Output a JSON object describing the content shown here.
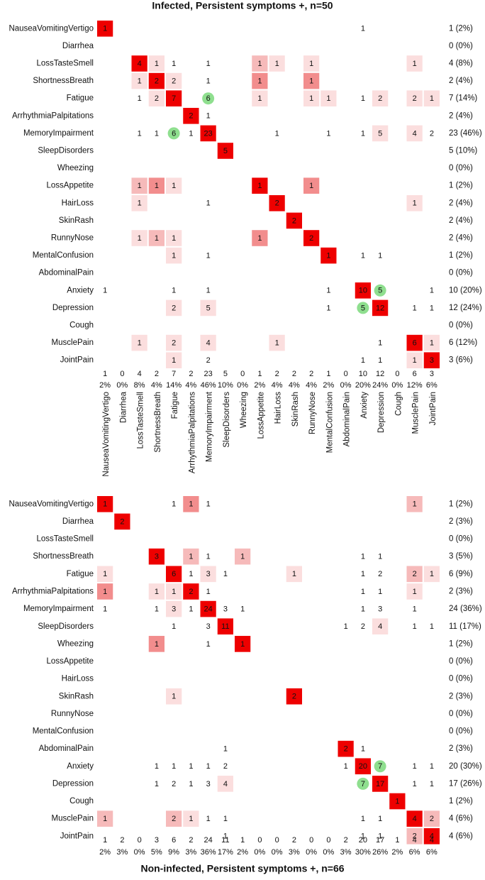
{
  "chart_data": [
    {
      "type": "heatmap",
      "title": "Infected, Persistent symptoms +, n=50",
      "labels": [
        "NauseaVomitingVertigo",
        "Diarrhea",
        "LossTasteSmell",
        "ShortnessBreath",
        "Fatigue",
        "ArrhythmiaPalpitations",
        "MemoryImpairment",
        "SleepDisorders",
        "Wheezing",
        "LossAppetite",
        "HairLoss",
        "SkinRash",
        "RunnyNose",
        "MentalConfusion",
        "AbdominalPain",
        "Anxiety",
        "Depression",
        "Cough",
        "MusclePain",
        "JointPain"
      ],
      "row_totals": [
        "1 (2%)",
        "0 (0%)",
        "4 (8%)",
        "2 (4%)",
        "7 (14%)",
        "2 (4%)",
        "23 (46%)",
        "5 (10%)",
        "0 (0%)",
        "1 (2%)",
        "2 (4%)",
        "2 (4%)",
        "2 (4%)",
        "1 (2%)",
        "0 (0%)",
        "10 (20%)",
        "12 (24%)",
        "0 (0%)",
        "6 (12%)",
        "3 (6%)"
      ],
      "col_counts": [
        "1",
        "0",
        "4",
        "2",
        "7",
        "2",
        "23",
        "5",
        "0",
        "1",
        "2",
        "2",
        "2",
        "1",
        "0",
        "10",
        "12",
        "0",
        "6",
        "3"
      ],
      "col_percents": [
        "2%",
        "0%",
        "8%",
        "4%",
        "14%",
        "4%",
        "46%",
        "10%",
        "0%",
        "2%",
        "4%",
        "4%",
        "4%",
        "2%",
        "0%",
        "20%",
        "24%",
        "0%",
        "12%",
        "6%"
      ],
      "cells": [
        [
          0,
          0,
          1,
          "red"
        ],
        [
          0,
          15,
          1,
          "none"
        ],
        [
          2,
          2,
          4,
          "red"
        ],
        [
          2,
          3,
          1,
          "lightest"
        ],
        [
          2,
          4,
          1,
          "none"
        ],
        [
          2,
          6,
          1,
          "none"
        ],
        [
          2,
          9,
          1,
          "light"
        ],
        [
          2,
          10,
          1,
          "lightest"
        ],
        [
          2,
          12,
          1,
          "lightest"
        ],
        [
          2,
          18,
          1,
          "lightest"
        ],
        [
          3,
          2,
          1,
          "lightest"
        ],
        [
          3,
          3,
          2,
          "red"
        ],
        [
          3,
          4,
          2,
          "lightest"
        ],
        [
          3,
          6,
          1,
          "none"
        ],
        [
          3,
          9,
          1,
          "medium"
        ],
        [
          3,
          12,
          1,
          "medium"
        ],
        [
          4,
          2,
          1,
          "none"
        ],
        [
          4,
          3,
          2,
          "lightest"
        ],
        [
          4,
          4,
          7,
          "red"
        ],
        [
          4,
          6,
          6,
          "green"
        ],
        [
          4,
          9,
          1,
          "lightest"
        ],
        [
          4,
          12,
          1,
          "lightest"
        ],
        [
          4,
          13,
          1,
          "lightest"
        ],
        [
          4,
          15,
          1,
          "none"
        ],
        [
          4,
          16,
          2,
          "lightest"
        ],
        [
          4,
          18,
          2,
          "lightest"
        ],
        [
          4,
          19,
          1,
          "lightest"
        ],
        [
          5,
          5,
          2,
          "red"
        ],
        [
          5,
          6,
          1,
          "none"
        ],
        [
          6,
          2,
          1,
          "none"
        ],
        [
          6,
          3,
          1,
          "none"
        ],
        [
          6,
          4,
          6,
          "green"
        ],
        [
          6,
          5,
          1,
          "none"
        ],
        [
          6,
          6,
          23,
          "red"
        ],
        [
          6,
          10,
          1,
          "none"
        ],
        [
          6,
          13,
          1,
          "none"
        ],
        [
          6,
          15,
          1,
          "none"
        ],
        [
          6,
          16,
          5,
          "lightest"
        ],
        [
          6,
          18,
          4,
          "lightest"
        ],
        [
          6,
          19,
          2,
          "none"
        ],
        [
          7,
          7,
          5,
          "red"
        ],
        [
          9,
          2,
          1,
          "light"
        ],
        [
          9,
          3,
          1,
          "medium"
        ],
        [
          9,
          4,
          1,
          "lightest"
        ],
        [
          9,
          9,
          1,
          "red"
        ],
        [
          9,
          12,
          1,
          "medium"
        ],
        [
          10,
          2,
          1,
          "lightest"
        ],
        [
          10,
          6,
          1,
          "none"
        ],
        [
          10,
          10,
          2,
          "red"
        ],
        [
          10,
          18,
          1,
          "lightest"
        ],
        [
          11,
          11,
          2,
          "red"
        ],
        [
          12,
          2,
          1,
          "lightest"
        ],
        [
          12,
          3,
          1,
          "light"
        ],
        [
          12,
          4,
          1,
          "lightest"
        ],
        [
          12,
          9,
          1,
          "medium"
        ],
        [
          12,
          12,
          2,
          "red"
        ],
        [
          13,
          4,
          1,
          "lightest"
        ],
        [
          13,
          6,
          1,
          "none"
        ],
        [
          13,
          13,
          1,
          "red"
        ],
        [
          13,
          15,
          1,
          "none"
        ],
        [
          13,
          16,
          1,
          "none"
        ],
        [
          15,
          0,
          1,
          "none"
        ],
        [
          15,
          4,
          1,
          "none"
        ],
        [
          15,
          6,
          1,
          "none"
        ],
        [
          15,
          13,
          1,
          "none"
        ],
        [
          15,
          15,
          10,
          "red"
        ],
        [
          15,
          16,
          5,
          "green"
        ],
        [
          15,
          19,
          1,
          "none"
        ],
        [
          16,
          4,
          2,
          "lightest"
        ],
        [
          16,
          6,
          5,
          "lightest"
        ],
        [
          16,
          13,
          1,
          "none"
        ],
        [
          16,
          15,
          5,
          "green"
        ],
        [
          16,
          16,
          12,
          "red"
        ],
        [
          16,
          18,
          1,
          "none"
        ],
        [
          16,
          19,
          1,
          "none"
        ],
        [
          18,
          2,
          1,
          "lightest"
        ],
        [
          18,
          4,
          2,
          "lightest"
        ],
        [
          18,
          6,
          4,
          "lightest"
        ],
        [
          18,
          10,
          1,
          "lightest"
        ],
        [
          18,
          16,
          1,
          "none"
        ],
        [
          18,
          18,
          6,
          "red"
        ],
        [
          18,
          19,
          1,
          "lightest"
        ],
        [
          19,
          4,
          1,
          "lightest"
        ],
        [
          19,
          6,
          2,
          "none"
        ],
        [
          19,
          15,
          1,
          "none"
        ],
        [
          19,
          16,
          1,
          "none"
        ],
        [
          19,
          18,
          1,
          "lightest"
        ],
        [
          19,
          19,
          3,
          "red"
        ]
      ]
    },
    {
      "type": "heatmap",
      "title": "Non-infected, Persistent symptoms +, n=66",
      "labels": [
        "NauseaVomitingVertigo",
        "Diarrhea",
        "LossTasteSmell",
        "ShortnessBreath",
        "Fatigue",
        "ArrhythmiaPalpitations",
        "MemoryImpairment",
        "SleepDisorders",
        "Wheezing",
        "LossAppetite",
        "HairLoss",
        "SkinRash",
        "RunnyNose",
        "MentalConfusion",
        "AbdominalPain",
        "Anxiety",
        "Depression",
        "Cough",
        "MusclePain",
        "JointPain"
      ],
      "row_totals": [
        "1 (2%)",
        "2 (3%)",
        "0 (0%)",
        "3 (5%)",
        "6 (9%)",
        "2 (3%)",
        "24 (36%)",
        "11 (17%)",
        "1 (2%)",
        "0 (0%)",
        "0 (0%)",
        "2 (3%)",
        "0 (0%)",
        "0 (0%)",
        "2 (3%)",
        "20 (30%)",
        "17 (26%)",
        "1 (2%)",
        "4 (6%)",
        "4 (6%)"
      ],
      "col_counts": [
        "1",
        "2",
        "0",
        "3",
        "6",
        "2",
        "24",
        "11",
        "1",
        "0",
        "0",
        "2",
        "0",
        "0",
        "2",
        "20",
        "17",
        "1",
        "4",
        "4"
      ],
      "col_percents": [
        "2%",
        "3%",
        "0%",
        "5%",
        "9%",
        "3%",
        "36%",
        "17%",
        "2%",
        "0%",
        "0%",
        "3%",
        "0%",
        "0%",
        "3%",
        "30%",
        "26%",
        "2%",
        "6%",
        "6%"
      ],
      "cells": [
        [
          0,
          0,
          1,
          "red"
        ],
        [
          0,
          4,
          1,
          "none"
        ],
        [
          0,
          5,
          1,
          "medium"
        ],
        [
          0,
          6,
          1,
          "none"
        ],
        [
          0,
          18,
          1,
          "light"
        ],
        [
          1,
          1,
          2,
          "red"
        ],
        [
          3,
          3,
          3,
          "red"
        ],
        [
          3,
          5,
          1,
          "light"
        ],
        [
          3,
          6,
          1,
          "none"
        ],
        [
          3,
          8,
          1,
          "light"
        ],
        [
          3,
          15,
          1,
          "none"
        ],
        [
          3,
          16,
          1,
          "none"
        ],
        [
          4,
          0,
          1,
          "lightest"
        ],
        [
          4,
          4,
          6,
          "red"
        ],
        [
          4,
          5,
          1,
          "none"
        ],
        [
          4,
          6,
          3,
          "lightest"
        ],
        [
          4,
          7,
          1,
          "none"
        ],
        [
          4,
          11,
          1,
          "lightest"
        ],
        [
          4,
          15,
          1,
          "none"
        ],
        [
          4,
          16,
          2,
          "none"
        ],
        [
          4,
          18,
          2,
          "light"
        ],
        [
          4,
          19,
          1,
          "lightest"
        ],
        [
          5,
          0,
          1,
          "medium"
        ],
        [
          5,
          3,
          1,
          "lightest"
        ],
        [
          5,
          4,
          1,
          "lightest"
        ],
        [
          5,
          5,
          2,
          "red"
        ],
        [
          5,
          6,
          1,
          "none"
        ],
        [
          5,
          15,
          1,
          "none"
        ],
        [
          5,
          16,
          1,
          "none"
        ],
        [
          5,
          18,
          1,
          "lightest"
        ],
        [
          6,
          0,
          1,
          "none"
        ],
        [
          6,
          3,
          1,
          "none"
        ],
        [
          6,
          4,
          3,
          "lightest"
        ],
        [
          6,
          5,
          1,
          "none"
        ],
        [
          6,
          6,
          24,
          "red"
        ],
        [
          6,
          7,
          3,
          "none"
        ],
        [
          6,
          8,
          1,
          "none"
        ],
        [
          6,
          15,
          1,
          "none"
        ],
        [
          6,
          16,
          3,
          "none"
        ],
        [
          6,
          18,
          1,
          "none"
        ],
        [
          7,
          4,
          1,
          "none"
        ],
        [
          7,
          6,
          3,
          "none"
        ],
        [
          7,
          7,
          11,
          "red"
        ],
        [
          7,
          14,
          1,
          "none"
        ],
        [
          7,
          15,
          2,
          "none"
        ],
        [
          7,
          16,
          4,
          "lightest"
        ],
        [
          7,
          18,
          1,
          "none"
        ],
        [
          7,
          19,
          1,
          "none"
        ],
        [
          8,
          3,
          1,
          "medium"
        ],
        [
          8,
          6,
          1,
          "none"
        ],
        [
          8,
          8,
          1,
          "red"
        ],
        [
          11,
          4,
          1,
          "lightest"
        ],
        [
          11,
          11,
          2,
          "red"
        ],
        [
          14,
          7,
          1,
          "none"
        ],
        [
          14,
          14,
          2,
          "red"
        ],
        [
          14,
          15,
          1,
          "none"
        ],
        [
          15,
          3,
          1,
          "none"
        ],
        [
          15,
          4,
          1,
          "none"
        ],
        [
          15,
          5,
          1,
          "none"
        ],
        [
          15,
          6,
          1,
          "none"
        ],
        [
          15,
          7,
          2,
          "none"
        ],
        [
          15,
          14,
          1,
          "none"
        ],
        [
          15,
          15,
          20,
          "red"
        ],
        [
          15,
          16,
          7,
          "green"
        ],
        [
          15,
          18,
          1,
          "none"
        ],
        [
          15,
          19,
          1,
          "none"
        ],
        [
          16,
          3,
          1,
          "none"
        ],
        [
          16,
          4,
          2,
          "none"
        ],
        [
          16,
          5,
          1,
          "none"
        ],
        [
          16,
          6,
          3,
          "none"
        ],
        [
          16,
          7,
          4,
          "lightest"
        ],
        [
          16,
          15,
          7,
          "green"
        ],
        [
          16,
          16,
          17,
          "red"
        ],
        [
          16,
          18,
          1,
          "none"
        ],
        [
          16,
          19,
          1,
          "none"
        ],
        [
          17,
          17,
          1,
          "red"
        ],
        [
          18,
          0,
          1,
          "light"
        ],
        [
          18,
          4,
          2,
          "light"
        ],
        [
          18,
          5,
          1,
          "lightest"
        ],
        [
          18,
          6,
          1,
          "none"
        ],
        [
          18,
          7,
          1,
          "none"
        ],
        [
          18,
          15,
          1,
          "none"
        ],
        [
          18,
          16,
          1,
          "none"
        ],
        [
          18,
          18,
          4,
          "red"
        ],
        [
          18,
          19,
          2,
          "light"
        ],
        [
          19,
          7,
          1,
          "none"
        ],
        [
          19,
          15,
          1,
          "none"
        ],
        [
          19,
          16,
          1,
          "none"
        ],
        [
          19,
          18,
          2,
          "light"
        ],
        [
          19,
          19,
          4,
          "red"
        ]
      ]
    }
  ],
  "colors": {
    "red": "#ee0000",
    "medium": "#f28d8d",
    "light": "#f6baba",
    "lightest": "#fbdede",
    "green": "#8fdf8f"
  }
}
